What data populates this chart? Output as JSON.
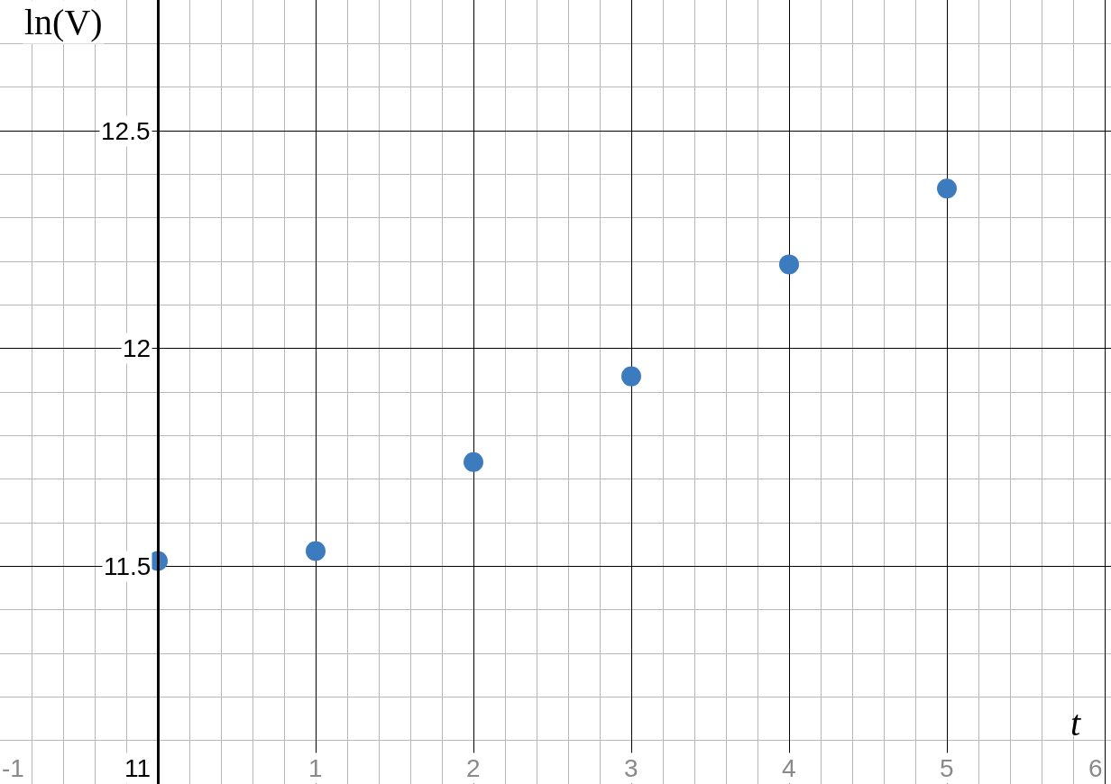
{
  "chart_data": {
    "type": "scatter",
    "xlabel": "t",
    "ylabel": "ln(V)",
    "x": [
      0,
      1,
      2,
      3,
      4,
      5
    ],
    "series": [
      {
        "color": "#3d7bbf",
        "values": [
          11.512,
          11.535,
          11.739,
          11.936,
          12.193,
          12.367
        ]
      }
    ],
    "xlim": [
      -1,
      6.04
    ],
    "ylim": [
      11,
      12.8
    ],
    "xticks": [
      -1,
      {
        "value": 0,
        "label": null
      },
      1,
      2,
      3,
      4,
      5,
      6
    ],
    "yticks": [
      11,
      11.5,
      12,
      12.5
    ],
    "grid": true,
    "marker": "circle"
  }
}
